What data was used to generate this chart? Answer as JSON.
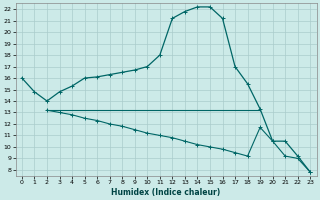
{
  "xlabel": "Humidex (Indice chaleur)",
  "bg_color": "#cceae8",
  "grid_color": "#aacccc",
  "line_color": "#006666",
  "xlim": [
    -0.5,
    23.5
  ],
  "ylim": [
    7.5,
    22.5
  ],
  "xticks": [
    0,
    1,
    2,
    3,
    4,
    5,
    6,
    7,
    8,
    9,
    10,
    11,
    12,
    13,
    14,
    15,
    16,
    17,
    18,
    19,
    20,
    21,
    22,
    23
  ],
  "yticks": [
    8,
    9,
    10,
    11,
    12,
    13,
    14,
    15,
    16,
    17,
    18,
    19,
    20,
    21,
    22
  ],
  "curve1_x": [
    0,
    1,
    2,
    3,
    4,
    5,
    6,
    7,
    8,
    9,
    10,
    11,
    12,
    13,
    14,
    15,
    16,
    17,
    18,
    19,
    20,
    21,
    22,
    23
  ],
  "curve1_y": [
    16.0,
    14.8,
    14.0,
    14.8,
    15.3,
    16.0,
    16.1,
    16.3,
    16.5,
    16.7,
    17.0,
    18.0,
    21.2,
    21.8,
    22.2,
    22.2,
    21.2,
    17.0,
    15.5,
    13.3,
    10.5,
    10.5,
    9.2,
    7.8
  ],
  "curve2_x": [
    2,
    3,
    4,
    5,
    6,
    7,
    8,
    9,
    10,
    11,
    12,
    13,
    14,
    15,
    16,
    17,
    18,
    19
  ],
  "curve2_y": [
    13.2,
    13.2,
    13.2,
    13.2,
    13.2,
    13.2,
    13.2,
    13.2,
    13.2,
    13.2,
    13.2,
    13.2,
    13.2,
    13.2,
    13.2,
    13.2,
    13.2,
    13.2
  ],
  "curve3_x": [
    2,
    3,
    4,
    5,
    6,
    7,
    8,
    9,
    10,
    11,
    12,
    13,
    14,
    15,
    16,
    17,
    18,
    19,
    20,
    21,
    22,
    23
  ],
  "curve3_y": [
    13.2,
    13.0,
    12.8,
    12.5,
    12.3,
    12.0,
    11.8,
    11.5,
    11.2,
    11.0,
    10.8,
    10.5,
    10.2,
    10.0,
    9.8,
    9.5,
    9.2,
    11.7,
    10.5,
    9.2,
    9.0,
    7.8
  ]
}
